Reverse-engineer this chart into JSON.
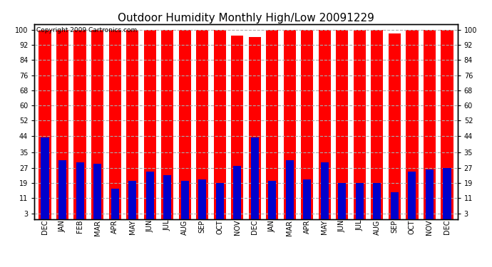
{
  "title": "Outdoor Humidity Monthly High/Low 20091229",
  "copyright_text": "Copyright 2009 Cartronics.com",
  "months": [
    "DEC",
    "JAN",
    "FEB",
    "MAR",
    "APR",
    "MAY",
    "JUN",
    "JUL",
    "AUG",
    "SEP",
    "OCT",
    "NOV",
    "DEC",
    "JAN",
    "MAR",
    "APR",
    "MAY",
    "JUN",
    "JUL",
    "AUG",
    "SEP",
    "OCT",
    "NOV",
    "DEC"
  ],
  "high_values": [
    100,
    100,
    100,
    100,
    100,
    100,
    100,
    100,
    100,
    100,
    100,
    97,
    96,
    100,
    100,
    100,
    100,
    100,
    100,
    100,
    98,
    100,
    100,
    100
  ],
  "low_values": [
    43,
    31,
    30,
    29,
    16,
    20,
    25,
    23,
    20,
    21,
    19,
    28,
    43,
    20,
    31,
    21,
    30,
    19,
    19,
    19,
    14,
    25,
    26,
    27
  ],
  "high_color": "#ff0000",
  "low_color": "#0000cc",
  "bg_color": "#ffffff",
  "plot_bg_color": "#ffffff",
  "yticks": [
    3,
    11,
    19,
    27,
    35,
    44,
    52,
    60,
    68,
    76,
    84,
    92,
    100
  ],
  "ylim": [
    0,
    103
  ],
  "red_bar_width": 0.7,
  "blue_bar_width": 0.45,
  "grid_color": "#aaaaaa",
  "title_fontsize": 11,
  "tick_fontsize": 7,
  "copyright_fontsize": 6.5
}
